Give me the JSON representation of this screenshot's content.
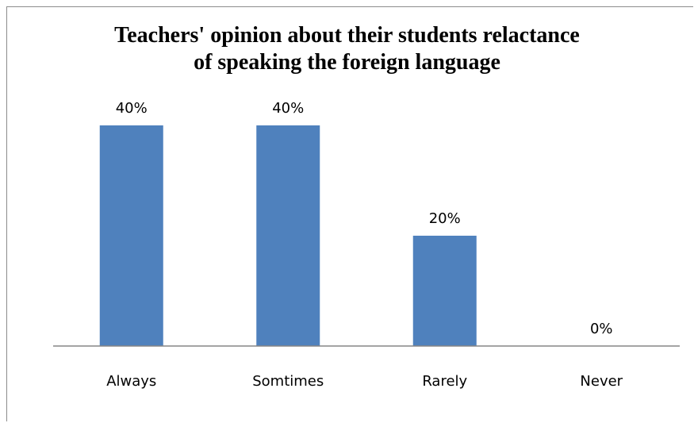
{
  "chart_data": {
    "type": "bar",
    "title_lines": [
      "Teachers' opinion about their students relactance",
      "of speaking the foreign language"
    ],
    "categories": [
      "Always",
      "Somtimes",
      "Rarely",
      "Never"
    ],
    "values": [
      40,
      40,
      20,
      0
    ],
    "data_labels": [
      "40%",
      "40%",
      "20%",
      "0%"
    ],
    "value_unit": "%",
    "ylim": [
      0,
      40
    ],
    "grid": false,
    "legend": "none",
    "bar_color": "#4F81BD",
    "axis_color": "#868686"
  }
}
